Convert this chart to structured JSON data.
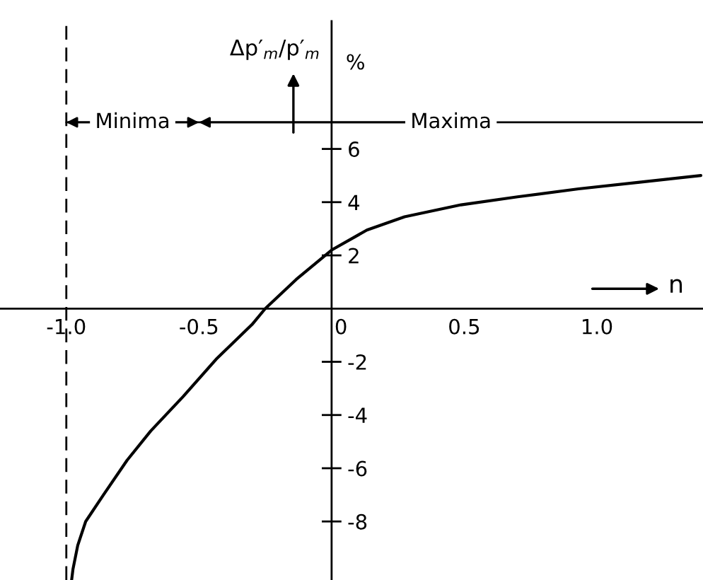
{
  "chart_data": {
    "type": "line",
    "xlabel": "n",
    "ylabel": "Δp′$_{m}$/p′$_{m}$",
    "annotations": [
      "%",
      {
        "text": "Minima",
        "x": -1.0,
        "y": 7
      },
      {
        "text": "Maxima",
        "x": -0.5,
        "y": 7
      }
    ],
    "xlim": [
      -1.25,
      1.4
    ],
    "ylim": [
      -10.2,
      10.8
    ],
    "xticks": [
      {
        "value": -1.0,
        "label": "-1.0"
      },
      -0.5,
      0,
      0.5,
      {
        "value": 1.0,
        "label": "1.0"
      }
    ],
    "yticks": [
      -8,
      -6,
      -4,
      -2,
      2,
      4,
      6
    ],
    "x": [
      -0.98,
      -0.975,
      -0.957,
      -0.927,
      -0.86,
      -0.771,
      -0.682,
      -0.559,
      -0.435,
      -0.3,
      -0.25,
      -0.133,
      0,
      0.133,
      0.275,
      0.488,
      0.701,
      0.931,
      1.161,
      1.392
    ],
    "series": [
      {
        "color": "#000000",
        "values": [
          -10.2,
          -9.8,
          -8.9,
          -8.0,
          -7.0,
          -5.7,
          -4.6,
          -3.3,
          -1.9,
          -0.6,
          0,
          1.1,
          2.2,
          2.95,
          3.45,
          3.9,
          4.2,
          4.5,
          4.75,
          5.0
        ]
      }
    ],
    "ref_lines": [
      {
        "axis": "x",
        "value": -1.0,
        "line_style": "dashed"
      },
      {
        "axis": "y",
        "value": 7
      }
    ]
  }
}
